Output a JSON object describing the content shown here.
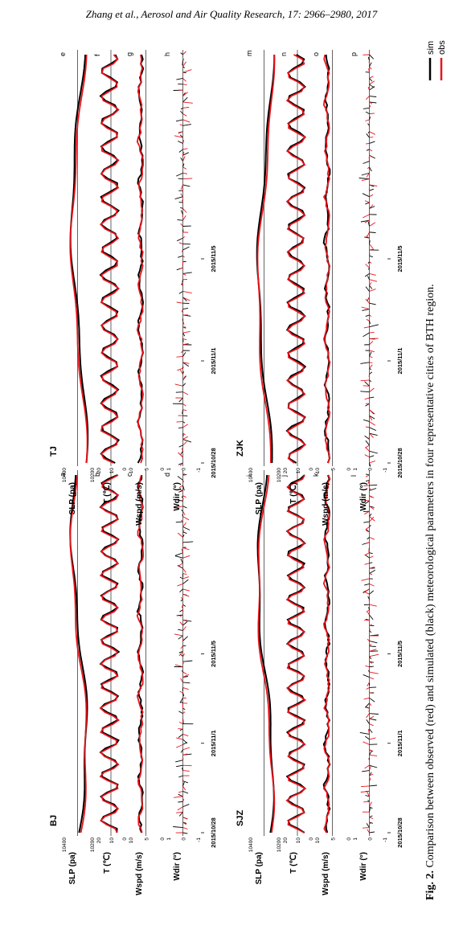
{
  "header": {
    "citation_prefix": "Zhang et al., Aerosol and Air Quality Research,",
    "citation_suffix": " 17: 2966–2980, 2017"
  },
  "caption": {
    "label": "Fig. 2.",
    "text": " Comparison between observed (red) and simulated (black) meteorological parameters in four representative cities of BTH region."
  },
  "legend": [
    {
      "name": "sim",
      "color": "#000000"
    },
    {
      "name": "obs",
      "color": "#e8141b"
    }
  ],
  "colors": {
    "sim": "#000000",
    "obs": "#e8141b"
  },
  "chart_data": {
    "type": "line",
    "x_ticks": [
      "2015/10/28",
      "2015/11/1",
      "2015/11/5"
    ],
    "variables": [
      {
        "key": "slp",
        "label": "SLP (pa)",
        "ticks": [
          "10400",
          "10200"
        ],
        "ylim": [
          10150,
          10450
        ]
      },
      {
        "key": "t",
        "label": "T (℃)",
        "ticks": [
          "20",
          "10",
          "0"
        ],
        "ylim": [
          -5,
          25
        ]
      },
      {
        "key": "wspd",
        "label": "Wspd (m/s)",
        "ticks": [
          "10",
          "5",
          "0"
        ],
        "ylim": [
          -1,
          12
        ]
      },
      {
        "key": "wdir",
        "label": "Wdir (°)",
        "ticks": [
          "1",
          "0",
          "-1"
        ],
        "ylim": [
          -1.5,
          1.5
        ]
      }
    ],
    "cities": [
      {
        "name": "BJ",
        "panel_letters": [
          "a",
          "b",
          "c",
          "d"
        ]
      },
      {
        "name": "SJZ",
        "panel_letters": [
          "i",
          "j",
          "k",
          "l"
        ]
      },
      {
        "name": "TJ",
        "panel_letters": [
          "e",
          "f",
          "g",
          "h"
        ]
      },
      {
        "name": "ZJK",
        "panel_letters": [
          "m",
          "n",
          "o",
          "p"
        ]
      }
    ]
  }
}
